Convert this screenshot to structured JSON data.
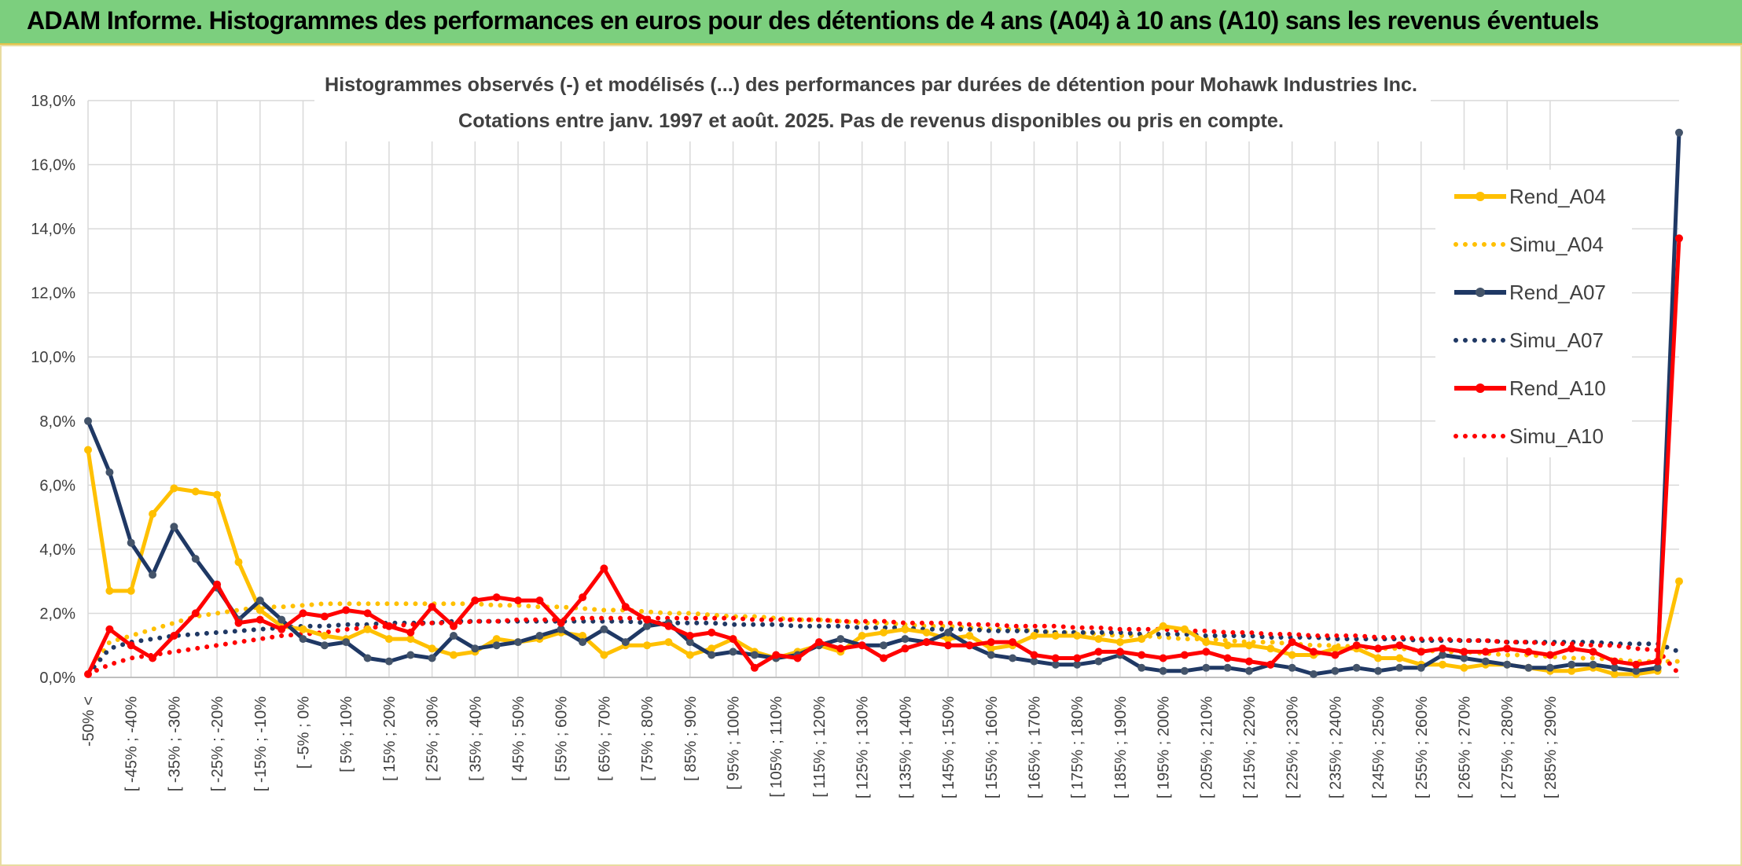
{
  "banner": {
    "title": "ADAM Informe. Histogrammes des performances en euros pour des détentions de 4 ans (A04) à 10 ans (A10) sans les revenus éventuels"
  },
  "colors": {
    "a04": "#ffc000",
    "a07": "#1f3864",
    "a10": "#ff0000",
    "banner": "#7ccf7e",
    "grid": "#d9d9d9"
  },
  "chart_data": {
    "type": "line",
    "title": "Histogrammes observés (-) et modélisés (...) des performances par durées de détention pour Mohawk Industries Inc.",
    "subtitle": "Cotations entre janv. 1997 et août. 2025. Pas de revenus disponibles ou pris en compte.",
    "ylim": [
      0,
      18
    ],
    "y_ticks": [
      "0,0%",
      "2,0%",
      "4,0%",
      "6,0%",
      "8,0%",
      "10,0%",
      "12,0%",
      "14,0%",
      "16,0%",
      "18,0%"
    ],
    "legend_position": "top-right",
    "x_labels": [
      "-50% <",
      "[ -45% ; -40%",
      "[ -35% ; -30%",
      "[ -25% ; -20%",
      "[ -15% ; -10%",
      "[ -5% ; 0%",
      "[ 5% ; 10%",
      "[ 15% ; 20%",
      "[ 25% ; 30%",
      "[ 35% ; 40%",
      "[ 45% ; 50%",
      "[ 55% ; 60%",
      "[ 65% ; 70%",
      "[ 75% ; 80%",
      "[ 85% ; 90%",
      "[ 95% ; 100%",
      "[ 105% ; 110%",
      "[ 115% ; 120%",
      "[ 125% ; 130%",
      "[ 135% ; 140%",
      "[ 145% ; 150%",
      "[ 155% ; 160%",
      "[ 165% ; 170%",
      "[ 175% ; 180%",
      "[ 185% ; 190%",
      "[ 195% ; 200%",
      "[ 205% ; 210%",
      "[ 215% ; 220%",
      "[ 225% ; 230%",
      "[ 235% ; 240%",
      "[ 245% ; 250%",
      "[ 255% ; 260%",
      "[ 265% ; 270%",
      "[ 275% ; 280%",
      "[ 285% ; 290%"
    ],
    "series": [
      {
        "name": "Rend_A04",
        "style": "solid",
        "color": "#ffc000",
        "values": [
          7.1,
          2.7,
          2.7,
          5.1,
          5.9,
          5.8,
          5.7,
          3.6,
          2.1,
          1.6,
          1.5,
          1.3,
          1.2,
          1.5,
          1.2,
          1.2,
          0.9,
          0.7,
          0.8,
          1.2,
          1.1,
          1.2,
          1.4,
          1.3,
          0.7,
          1.0,
          1.0,
          1.1,
          0.7,
          0.9,
          1.2,
          0.8,
          0.6,
          0.8,
          1.0,
          0.8,
          1.3,
          1.4,
          1.5,
          1.4,
          1.2,
          1.3,
          0.9,
          1.0,
          1.3,
          1.3,
          1.3,
          1.2,
          1.1,
          1.2,
          1.6,
          1.5,
          1.1,
          1.0,
          1.0,
          0.9,
          0.7,
          0.7,
          0.9,
          0.9,
          0.6,
          0.6,
          0.4,
          0.4,
          0.3,
          0.4,
          0.4,
          0.3,
          0.2,
          0.2,
          0.3,
          0.1,
          0.1,
          0.2,
          3.0
        ]
      },
      {
        "name": "Simu_A04",
        "style": "dotted",
        "color": "#ffc000",
        "values": [
          0.1,
          1.1,
          1.3,
          1.5,
          1.7,
          1.9,
          2.0,
          2.1,
          2.2,
          2.2,
          2.25,
          2.3,
          2.3,
          2.3,
          2.3,
          2.3,
          2.3,
          2.3,
          2.3,
          2.25,
          2.25,
          2.2,
          2.2,
          2.15,
          2.1,
          2.1,
          2.05,
          2.0,
          2.0,
          1.95,
          1.9,
          1.9,
          1.85,
          1.8,
          1.8,
          1.75,
          1.7,
          1.7,
          1.65,
          1.6,
          1.6,
          1.55,
          1.5,
          1.5,
          1.45,
          1.4,
          1.4,
          1.35,
          1.3,
          1.3,
          1.25,
          1.2,
          1.2,
          1.15,
          1.1,
          1.1,
          1.05,
          1.0,
          1.0,
          0.95,
          0.9,
          0.9,
          0.85,
          0.8,
          0.8,
          0.75,
          0.7,
          0.7,
          0.65,
          0.6,
          0.6,
          0.55,
          0.5,
          0.5,
          0.5
        ]
      },
      {
        "name": "Rend_A07",
        "style": "solid",
        "color": "#1f3864",
        "values": [
          8.0,
          6.4,
          4.2,
          3.2,
          4.7,
          3.7,
          2.8,
          1.8,
          2.4,
          1.8,
          1.2,
          1.0,
          1.1,
          0.6,
          0.5,
          0.7,
          0.6,
          1.3,
          0.9,
          1.0,
          1.1,
          1.3,
          1.5,
          1.1,
          1.5,
          1.1,
          1.6,
          1.7,
          1.1,
          0.7,
          0.8,
          0.7,
          0.6,
          0.7,
          1.0,
          1.2,
          1.0,
          1.0,
          1.2,
          1.1,
          1.4,
          1.0,
          0.7,
          0.6,
          0.5,
          0.4,
          0.4,
          0.5,
          0.7,
          0.3,
          0.2,
          0.2,
          0.3,
          0.3,
          0.2,
          0.4,
          0.3,
          0.1,
          0.2,
          0.3,
          0.2,
          0.3,
          0.3,
          0.7,
          0.6,
          0.5,
          0.4,
          0.3,
          0.3,
          0.4,
          0.4,
          0.3,
          0.2,
          0.3,
          17.0
        ]
      },
      {
        "name": "Simu_A07",
        "style": "dotted",
        "color": "#1f3864",
        "values": [
          0.1,
          0.9,
          1.1,
          1.2,
          1.3,
          1.35,
          1.4,
          1.45,
          1.5,
          1.55,
          1.6,
          1.6,
          1.65,
          1.65,
          1.7,
          1.7,
          1.7,
          1.75,
          1.75,
          1.75,
          1.75,
          1.75,
          1.75,
          1.75,
          1.75,
          1.75,
          1.7,
          1.7,
          1.7,
          1.7,
          1.65,
          1.65,
          1.65,
          1.6,
          1.6,
          1.6,
          1.55,
          1.55,
          1.55,
          1.5,
          1.5,
          1.5,
          1.45,
          1.45,
          1.45,
          1.4,
          1.4,
          1.4,
          1.4,
          1.35,
          1.35,
          1.35,
          1.3,
          1.3,
          1.3,
          1.25,
          1.25,
          1.25,
          1.2,
          1.2,
          1.2,
          1.2,
          1.15,
          1.15,
          1.15,
          1.15,
          1.1,
          1.1,
          1.1,
          1.1,
          1.1,
          1.05,
          1.05,
          1.05,
          0.8
        ]
      },
      {
        "name": "Rend_A10",
        "style": "solid",
        "color": "#ff0000",
        "values": [
          0.1,
          1.5,
          1.0,
          0.6,
          1.3,
          2.0,
          2.9,
          1.7,
          1.8,
          1.5,
          2.0,
          1.9,
          2.1,
          2.0,
          1.6,
          1.4,
          2.2,
          1.6,
          2.4,
          2.5,
          2.4,
          2.4,
          1.7,
          2.5,
          3.4,
          2.2,
          1.8,
          1.6,
          1.3,
          1.4,
          1.2,
          0.3,
          0.7,
          0.6,
          1.1,
          0.9,
          1.0,
          0.6,
          0.9,
          1.1,
          1.0,
          1.0,
          1.1,
          1.1,
          0.7,
          0.6,
          0.6,
          0.8,
          0.8,
          0.7,
          0.6,
          0.7,
          0.8,
          0.6,
          0.5,
          0.4,
          1.1,
          0.8,
          0.7,
          1.0,
          0.9,
          1.0,
          0.8,
          0.9,
          0.8,
          0.8,
          0.9,
          0.8,
          0.7,
          0.9,
          0.8,
          0.5,
          0.4,
          0.5,
          13.7
        ]
      },
      {
        "name": "Simu_A10",
        "style": "dotted",
        "color": "#ff0000",
        "values": [
          0.1,
          0.4,
          0.6,
          0.7,
          0.8,
          0.9,
          1.0,
          1.1,
          1.2,
          1.3,
          1.35,
          1.4,
          1.5,
          1.55,
          1.6,
          1.65,
          1.7,
          1.7,
          1.75,
          1.75,
          1.8,
          1.8,
          1.8,
          1.85,
          1.85,
          1.85,
          1.85,
          1.85,
          1.85,
          1.85,
          1.85,
          1.8,
          1.8,
          1.8,
          1.8,
          1.75,
          1.75,
          1.75,
          1.7,
          1.7,
          1.7,
          1.65,
          1.65,
          1.6,
          1.6,
          1.6,
          1.55,
          1.55,
          1.5,
          1.5,
          1.5,
          1.45,
          1.45,
          1.4,
          1.4,
          1.35,
          1.35,
          1.3,
          1.3,
          1.3,
          1.25,
          1.25,
          1.2,
          1.2,
          1.15,
          1.15,
          1.1,
          1.1,
          1.05,
          1.05,
          1.0,
          1.0,
          0.9,
          0.85,
          0.1
        ]
      }
    ]
  }
}
